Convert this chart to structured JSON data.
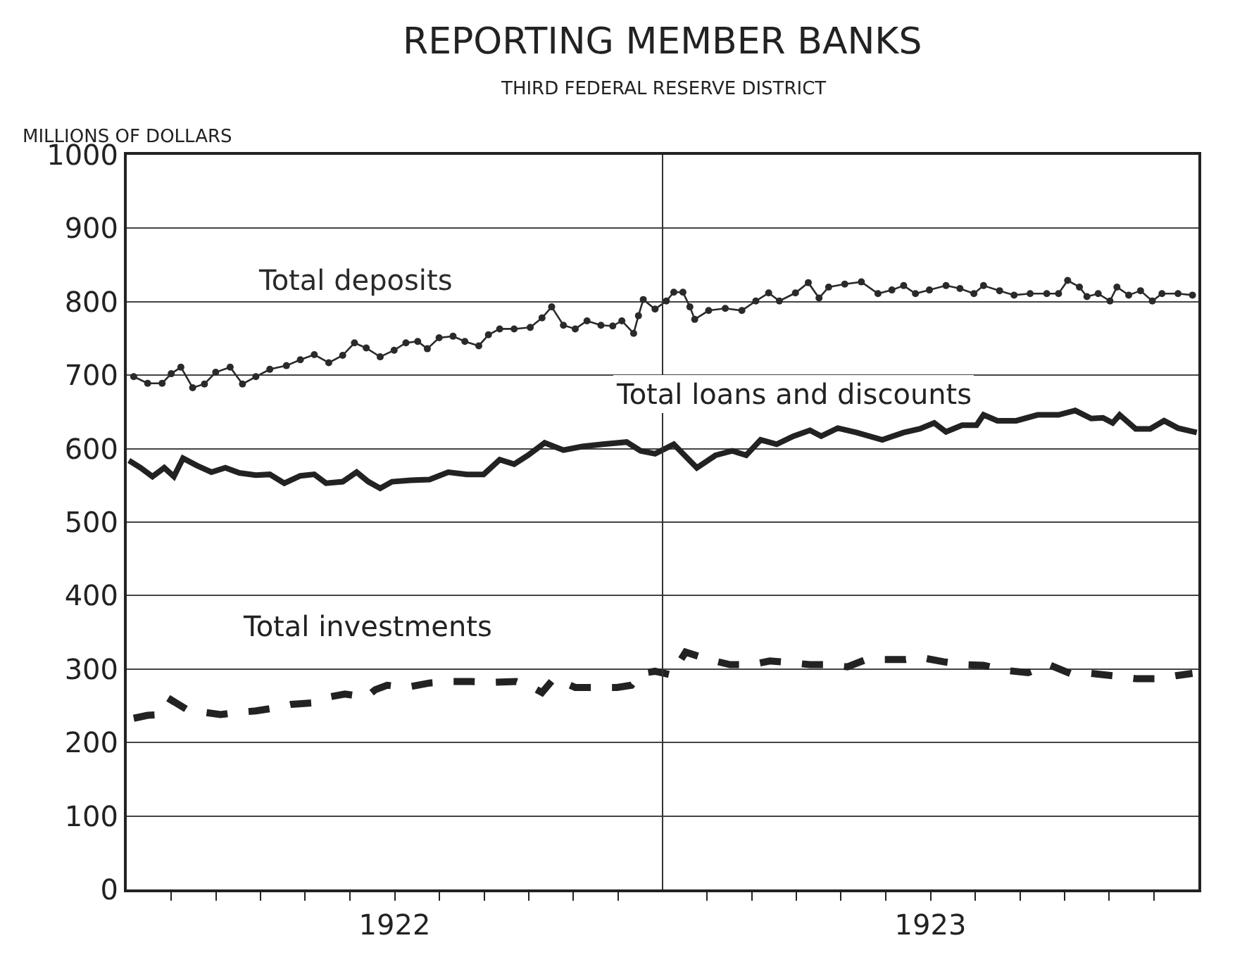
{
  "chart_data": {
    "type": "line",
    "title": "REPORTING MEMBER BANKS",
    "subtitle": "THIRD FEDERAL RESERVE DISTRICT",
    "ylabel": "MILLIONS OF DOLLARS",
    "xlim": [
      1922,
      1924
    ],
    "ylim": [
      0,
      1000
    ],
    "yticks": [
      0,
      100,
      200,
      300,
      400,
      500,
      600,
      700,
      800,
      900,
      1000
    ],
    "xticks": [
      {
        "value": 1922.083,
        "label": null
      },
      {
        "value": 1922.167,
        "label": null
      },
      {
        "value": 1922.25,
        "label": null
      },
      {
        "value": 1922.333,
        "label": null
      },
      {
        "value": 1922.417,
        "label": null
      },
      {
        "value": 1922.5,
        "label": "1922"
      },
      {
        "value": 1922.583,
        "label": null
      },
      {
        "value": 1922.667,
        "label": null
      },
      {
        "value": 1922.75,
        "label": null
      },
      {
        "value": 1922.833,
        "label": null
      },
      {
        "value": 1922.917,
        "label": null
      },
      {
        "value": 1923.083,
        "label": null
      },
      {
        "value": 1923.167,
        "label": null
      },
      {
        "value": 1923.25,
        "label": null
      },
      {
        "value": 1923.333,
        "label": null
      },
      {
        "value": 1923.417,
        "label": null
      },
      {
        "value": 1923.5,
        "label": "1923"
      },
      {
        "value": 1923.583,
        "label": null
      },
      {
        "value": 1923.667,
        "label": null
      },
      {
        "value": 1923.75,
        "label": null
      },
      {
        "value": 1923.833,
        "label": null
      },
      {
        "value": 1923.917,
        "label": null
      }
    ],
    "grid": "y",
    "legend": false,
    "ref_lines": [
      {
        "axis": "x",
        "value": 1923,
        "label": null,
        "color": "#333333"
      }
    ],
    "series": [
      {
        "name": "Total deposits",
        "color": "#2a2a2a",
        "marker": "circle",
        "line_style": "solid",
        "x": [
          1922.013,
          1922.039,
          1922.066,
          1922.083,
          1922.101,
          1922.123,
          1922.145,
          1922.166,
          1922.193,
          1922.216,
          1922.241,
          1922.267,
          1922.298,
          1922.324,
          1922.35,
          1922.377,
          1922.403,
          1922.425,
          1922.447,
          1922.473,
          1922.499,
          1922.521,
          1922.543,
          1922.561,
          1922.583,
          1922.609,
          1922.631,
          1922.657,
          1922.675,
          1922.696,
          1922.723,
          1922.753,
          1922.775,
          1922.793,
          1922.815,
          1922.837,
          1922.859,
          1922.885,
          1922.907,
          1922.924,
          1922.946,
          1922.955,
          1922.964,
          1922.986,
          1923.007,
          1923.021,
          1923.038,
          1923.051,
          1923.06,
          1923.086,
          1923.117,
          1923.148,
          1923.174,
          1923.198,
          1923.218,
          1923.248,
          1923.272,
          1923.292,
          1923.31,
          1923.34,
          1923.371,
          1923.402,
          1923.428,
          1923.45,
          1923.472,
          1923.498,
          1923.529,
          1923.555,
          1923.581,
          1923.599,
          1923.629,
          1923.656,
          1923.686,
          1923.717,
          1923.739,
          1923.756,
          1923.778,
          1923.792,
          1923.813,
          1923.835,
          1923.848,
          1923.87,
          1923.892,
          1923.914,
          1923.932,
          1923.962,
          1923.989
        ],
        "values": [
          698,
          689,
          689,
          702,
          711,
          683,
          688,
          704,
          711,
          688,
          698,
          708,
          713,
          721,
          728,
          717,
          727,
          744,
          737,
          725,
          734,
          744,
          746,
          736,
          751,
          753,
          746,
          740,
          755,
          763,
          763,
          765,
          778,
          793,
          768,
          763,
          774,
          768,
          767,
          774,
          757,
          781,
          803,
          790,
          801,
          813,
          813,
          793,
          776,
          788,
          791,
          788,
          801,
          812,
          801,
          812,
          826,
          805,
          820,
          824,
          827,
          811,
          816,
          822,
          811,
          816,
          822,
          818,
          811,
          822,
          815,
          809,
          811,
          811,
          811,
          829,
          820,
          807,
          811,
          801,
          820,
          809,
          815,
          801,
          811,
          811,
          809
        ]
      },
      {
        "name": "Total loans and discounts",
        "color": "#222222",
        "marker": "none",
        "line_style": "solid",
        "x": [
          1922.004,
          1922.026,
          1922.048,
          1922.07,
          1922.088,
          1922.105,
          1922.131,
          1922.158,
          1922.184,
          1922.21,
          1922.241,
          1922.267,
          1922.294,
          1922.324,
          1922.35,
          1922.372,
          1922.403,
          1922.429,
          1922.451,
          1922.473,
          1922.495,
          1922.53,
          1922.565,
          1922.6,
          1922.635,
          1922.666,
          1922.696,
          1922.723,
          1922.749,
          1922.78,
          1922.815,
          1922.85,
          1922.889,
          1922.933,
          1922.959,
          1922.986,
          1923.021,
          1923.064,
          1923.099,
          1923.13,
          1923.156,
          1923.183,
          1923.213,
          1923.244,
          1923.275,
          1923.296,
          1923.327,
          1923.362,
          1923.41,
          1923.45,
          1923.48,
          1923.507,
          1923.529,
          1923.559,
          1923.586,
          1923.599,
          1923.625,
          1923.66,
          1923.7,
          1923.739,
          1923.77,
          1923.8,
          1923.822,
          1923.84,
          1923.853,
          1923.883,
          1923.91,
          1923.936,
          1923.962,
          1923.997
        ],
        "values": [
          584,
          574,
          562,
          574,
          562,
          587,
          577,
          568,
          574,
          567,
          564,
          565,
          553,
          563,
          565,
          553,
          555,
          568,
          555,
          546,
          555,
          557,
          558,
          568,
          565,
          565,
          585,
          579,
          591,
          608,
          598,
          603,
          606,
          609,
          597,
          593,
          606,
          574,
          591,
          597,
          591,
          612,
          606,
          617,
          625,
          617,
          628,
          622,
          612,
          622,
          627,
          635,
          623,
          632,
          632,
          646,
          638,
          638,
          646,
          646,
          652,
          641,
          642,
          635,
          646,
          627,
          627,
          638,
          628,
          622
        ]
      },
      {
        "name": "Total investments",
        "color": "#222222",
        "marker": "none",
        "line_style": "dashed",
        "x": [
          1922.013,
          1922.039,
          1922.066,
          1922.083,
          1922.114,
          1922.145,
          1922.175,
          1922.206,
          1922.241,
          1922.276,
          1922.307,
          1922.346,
          1922.377,
          1922.407,
          1922.447,
          1922.464,
          1922.486,
          1922.521,
          1922.565,
          1922.604,
          1922.644,
          1922.688,
          1922.727,
          1922.758,
          1922.775,
          1922.797,
          1922.837,
          1922.872,
          1922.915,
          1922.942,
          1922.959,
          1922.986,
          1923.016,
          1923.043,
          1923.086,
          1923.126,
          1923.165,
          1923.2,
          1923.235,
          1923.275,
          1923.31,
          1923.345,
          1923.38,
          1923.419,
          1923.454,
          1923.48,
          1923.524,
          1923.564,
          1923.599,
          1923.643,
          1923.682,
          1923.721,
          1923.761,
          1923.8,
          1923.84,
          1923.883,
          1923.927,
          1923.958,
          1923.989
        ],
        "values": [
          233,
          237,
          238,
          258,
          244,
          241,
          238,
          241,
          243,
          247,
          252,
          254,
          262,
          266,
          262,
          272,
          278,
          275,
          281,
          283,
          283,
          282,
          283,
          275,
          268,
          287,
          275,
          275,
          275,
          278,
          294,
          297,
          292,
          323,
          313,
          306,
          306,
          311,
          309,
          306,
          306,
          303,
          313,
          313,
          313,
          316,
          310,
          306,
          305,
          298,
          295,
          306,
          294,
          294,
          291,
          287,
          287,
          291,
          294
        ]
      }
    ]
  }
}
